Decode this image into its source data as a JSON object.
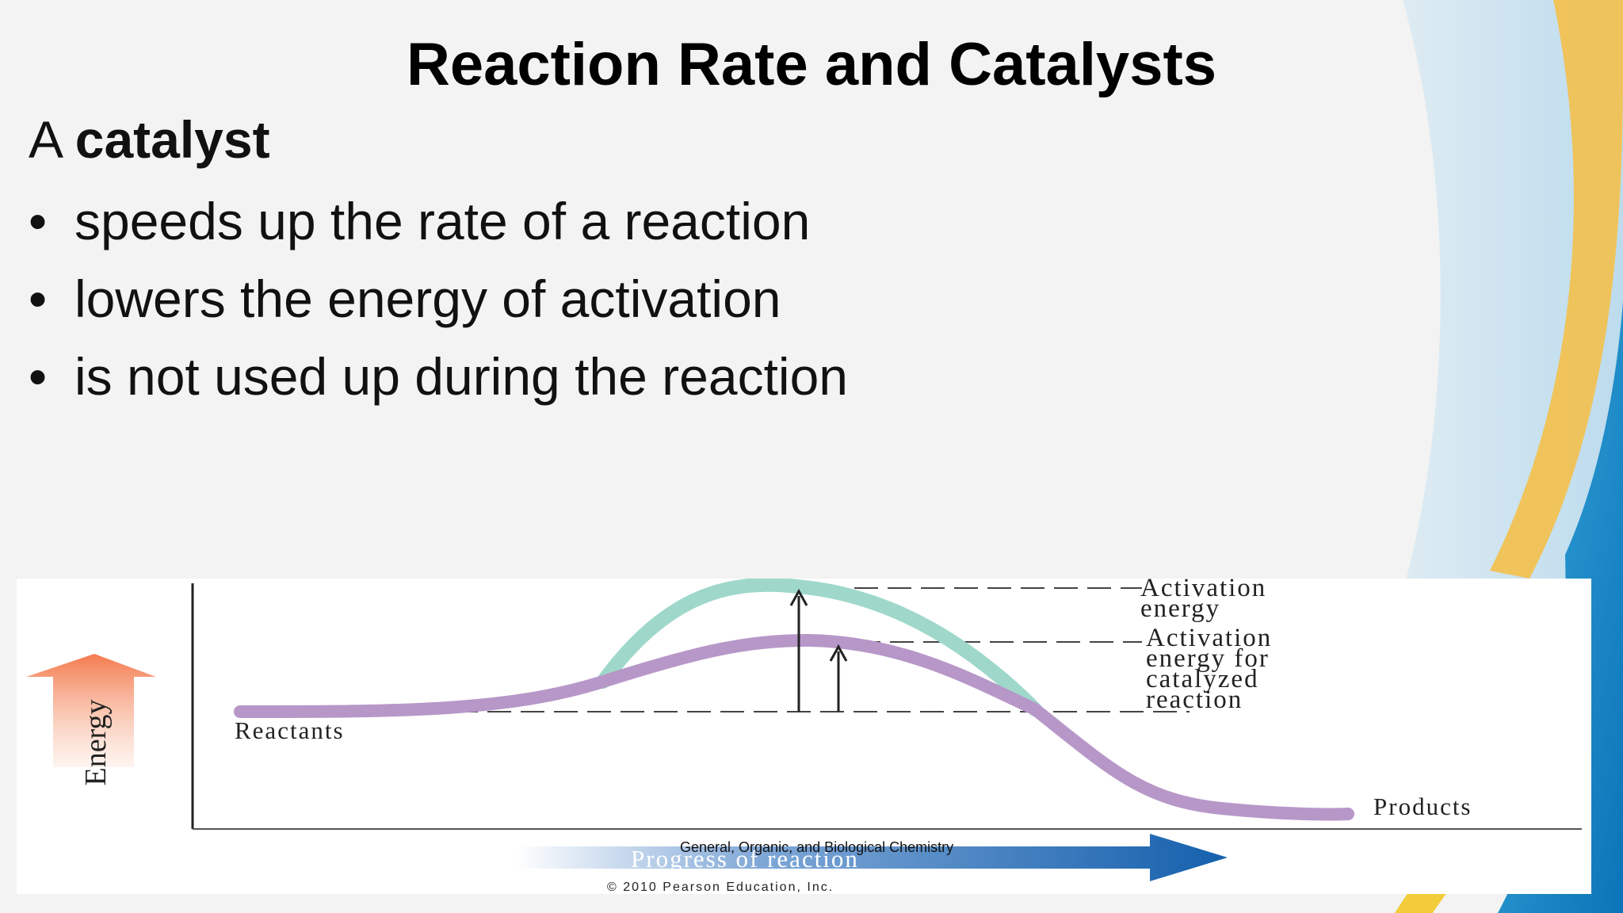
{
  "slide": {
    "title": "Reaction Rate and Catalysts",
    "intro_prefix": "A",
    "intro_bold": "catalyst",
    "bullets": [
      "speeds up the rate of a reaction",
      "lowers the energy of activation",
      "is not used up during the reaction"
    ],
    "footer": "General, Organic, and Biological Chemistry"
  },
  "diagram": {
    "y_axis_label": "Energy",
    "x_axis_label": "Progress of reaction",
    "reactants_label": "Reactants",
    "products_label": "Products",
    "activation_label_line1": "Activation",
    "activation_label_line2": "energy",
    "catalyzed_label_line1": "Activation",
    "catalyzed_label_line2": "energy for",
    "catalyzed_label_line3": "catalyzed",
    "catalyzed_label_line4": "reaction",
    "copyright": "© 2010 Pearson Education, Inc.",
    "colors": {
      "uncatalyzed_curve": "#9fd8cb",
      "catalyzed_curve": "#b797c8",
      "energy_arrow": "#f08a5d",
      "progress_arrow": "#1560ad"
    }
  }
}
